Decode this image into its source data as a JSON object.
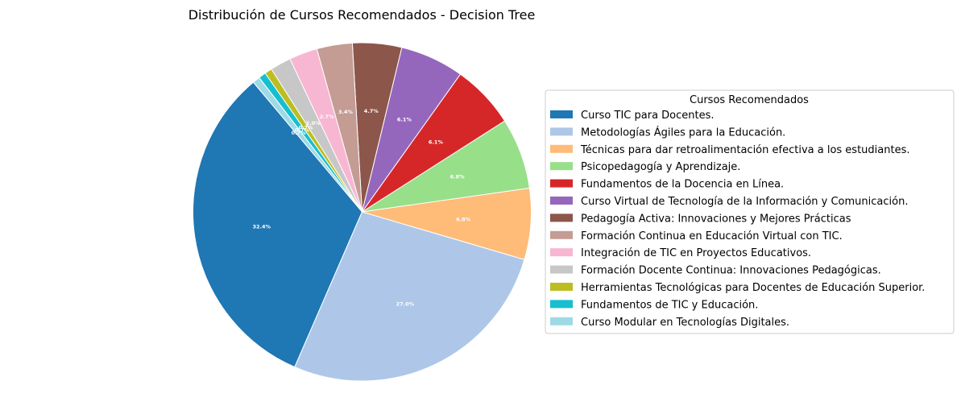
{
  "chart_data": {
    "type": "pie",
    "title": "Distribución de Cursos Recomendados - Decision Tree",
    "legend_title": "Cursos Recomendados",
    "legend_placement": "right",
    "start_angle_deg": 130,
    "direction": "counterclockwise",
    "slices": [
      {
        "label": "Curso TIC para Docentes.",
        "value": 32.4,
        "pct_label": "32.4%",
        "color": "#1f77b4"
      },
      {
        "label": "Metodologías Ágiles para la Educación.",
        "value": 27.0,
        "pct_label": "27.0%",
        "color": "#aec7e8"
      },
      {
        "label": "Técnicas para dar retroalimentación efectiva a los estudiantes.",
        "value": 6.8,
        "pct_label": "6.8%",
        "color": "#ffbb78"
      },
      {
        "label": "Psicopedagogía y Aprendizaje.",
        "value": 6.8,
        "pct_label": "6.8%",
        "color": "#98df8a"
      },
      {
        "label": "Fundamentos de la Docencia en Línea.",
        "value": 6.1,
        "pct_label": "6.1%",
        "color": "#d62728"
      },
      {
        "label": "Curso Virtual de Tecnología de la Información y Comunicación.",
        "value": 6.1,
        "pct_label": "6.1%",
        "color": "#9467bd"
      },
      {
        "label": "Pedagogía Activa: Innovaciones y Mejores Prácticas",
        "value": 4.7,
        "pct_label": "4.7%",
        "color": "#8c564b"
      },
      {
        "label": "Formación Continua en Educación Virtual con TIC.",
        "value": 3.4,
        "pct_label": "3.4%",
        "color": "#c49c94"
      },
      {
        "label": "Integración de TIC en Proyectos Educativos.",
        "value": 2.7,
        "pct_label": "2.7%",
        "color": "#f7b6d2"
      },
      {
        "label": "Formación Docente Continua: Innovaciones Pedagógicas.",
        "value": 2.0,
        "pct_label": "2.0%",
        "color": "#c7c7c7"
      },
      {
        "label": "Herramientas Tecnológicas para Docentes de Educación Superior.",
        "value": 0.7,
        "pct_label": "0.7%",
        "color": "#bcbd22"
      },
      {
        "label": "Fundamentos de TIC y Educación.",
        "value": 0.7,
        "pct_label": "0.7%",
        "color": "#17becf"
      },
      {
        "label": "Curso Modular en Tecnologías Digitales.",
        "value": 0.7,
        "pct_label": "0.7%",
        "color": "#9edae5"
      }
    ]
  }
}
